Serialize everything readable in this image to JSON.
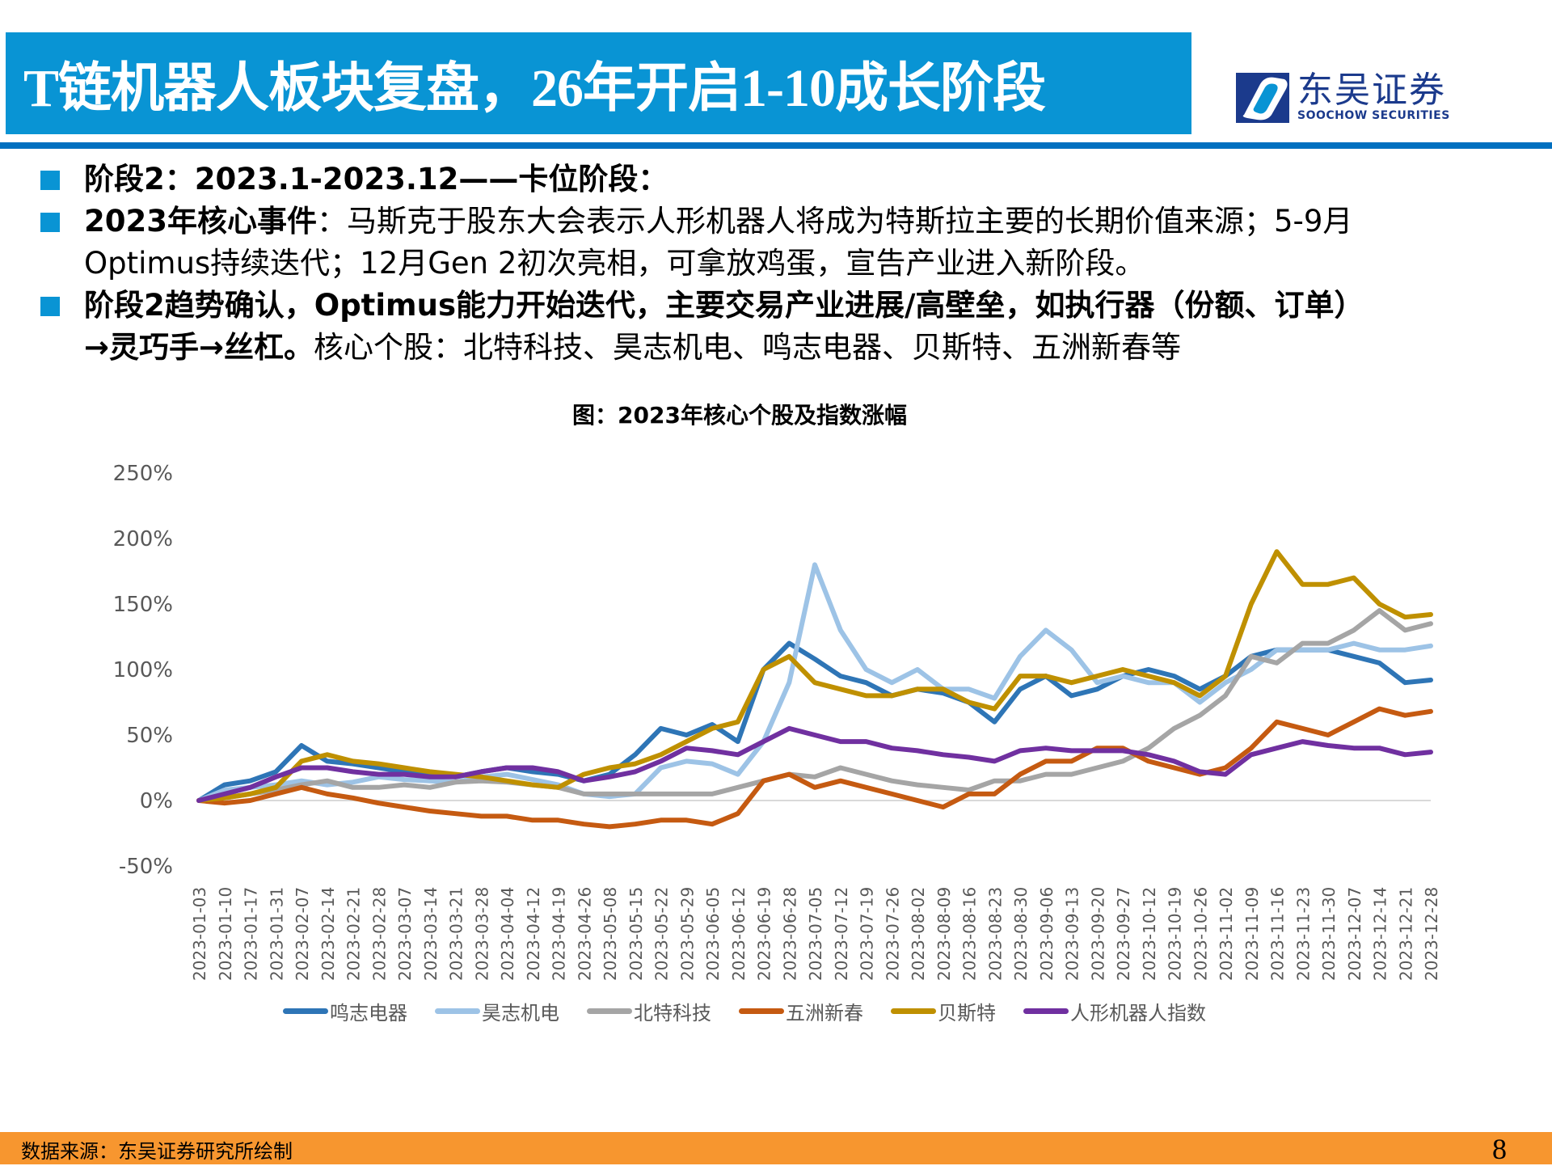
{
  "header": {
    "title": "T链机器人板块复盘，26年开启1-10成长阶段",
    "logo_cn": "东吴证券",
    "logo_en": "SOOCHOW SECURITIES"
  },
  "bullets": [
    {
      "bold": "阶段2：2023.1-2023.12——卡位阶段：",
      "normal": "",
      "line2_bold": "",
      "line2_normal": ""
    },
    {
      "bold": "2023年核心事件",
      "normal": "：马斯克于股东大会表示人形机器人将成为特斯拉主要的长期价值来源；5-9月",
      "line2_bold": "",
      "line2_normal": "Optimus持续迭代；12月Gen 2初次亮相，可拿放鸡蛋，宣告产业进入新阶段。"
    },
    {
      "bold": "阶段2趋势确认，Optimus能力开始迭代，主要交易产业进展/高壁垒，如执行器（份额、订单）",
      "normal": "",
      "line2_bold": "→灵巧手→丝杠。",
      "line2_normal": "核心个股：北特科技、昊志机电、鸣志电器、贝斯特、五洲新春等"
    }
  ],
  "footer": {
    "source": "数据来源：东吴证券研究所绘制",
    "page": "8"
  },
  "colors": {
    "title_bg": "#0994D4",
    "rule": "#0070C0",
    "footer_bg": "#F7962F"
  },
  "chart_data": {
    "type": "line",
    "title": "图：2023年核心个股及指数涨幅",
    "xlabel": "",
    "ylabel": "",
    "ylim": [
      -0.5,
      2.5
    ],
    "yticks": [
      "-50%",
      "0%",
      "50%",
      "100%",
      "150%",
      "200%",
      "250%"
    ],
    "ytick_values": [
      -50,
      0,
      50,
      100,
      150,
      200,
      250
    ],
    "grid": false,
    "legend_position": "bottom",
    "categories": [
      "2023-01-03",
      "2023-01-10",
      "2023-01-17",
      "2023-01-31",
      "2023-02-07",
      "2023-02-14",
      "2023-02-21",
      "2023-02-28",
      "2023-03-07",
      "2023-03-14",
      "2023-03-21",
      "2023-03-28",
      "2023-04-04",
      "2023-04-12",
      "2023-04-19",
      "2023-04-26",
      "2023-05-08",
      "2023-05-15",
      "2023-05-22",
      "2023-05-29",
      "2023-06-05",
      "2023-06-12",
      "2023-06-19",
      "2023-06-28",
      "2023-07-05",
      "2023-07-12",
      "2023-07-19",
      "2023-07-26",
      "2023-08-02",
      "2023-08-09",
      "2023-08-16",
      "2023-08-23",
      "2023-08-30",
      "2023-09-06",
      "2023-09-13",
      "2023-09-20",
      "2023-09-27",
      "2023-10-12",
      "2023-10-19",
      "2023-10-26",
      "2023-11-02",
      "2023-11-09",
      "2023-11-16",
      "2023-11-23",
      "2023-11-30",
      "2023-12-07",
      "2023-12-14",
      "2023-12-21",
      "2023-12-28"
    ],
    "series": [
      {
        "name": "鸣志电器",
        "color": "#2E75B6",
        "values": [
          0,
          12,
          15,
          22,
          42,
          30,
          28,
          25,
          22,
          20,
          18,
          22,
          25,
          22,
          20,
          15,
          20,
          35,
          55,
          50,
          58,
          45,
          100,
          120,
          108,
          95,
          90,
          80,
          85,
          82,
          75,
          60,
          85,
          95,
          80,
          85,
          95,
          100,
          95,
          85,
          95,
          110,
          115,
          115,
          115,
          110,
          105,
          90,
          92
        ]
      },
      {
        "name": "昊志机电",
        "color": "#9DC3E6",
        "values": [
          0,
          8,
          10,
          12,
          15,
          12,
          14,
          18,
          16,
          15,
          14,
          18,
          20,
          16,
          12,
          5,
          3,
          5,
          25,
          30,
          28,
          20,
          45,
          90,
          180,
          130,
          100,
          90,
          100,
          85,
          85,
          78,
          110,
          130,
          115,
          90,
          95,
          90,
          90,
          75,
          90,
          100,
          115,
          115,
          115,
          120,
          115,
          115,
          118
        ]
      },
      {
        "name": "北特科技",
        "color": "#A5A5A5",
        "values": [
          0,
          2,
          5,
          8,
          12,
          15,
          10,
          10,
          12,
          10,
          14,
          15,
          14,
          12,
          10,
          5,
          5,
          5,
          5,
          5,
          5,
          10,
          15,
          20,
          18,
          25,
          20,
          15,
          12,
          10,
          8,
          15,
          15,
          20,
          20,
          25,
          30,
          40,
          55,
          65,
          80,
          110,
          105,
          120,
          120,
          130,
          145,
          130,
          135
        ]
      },
      {
        "name": "五洲新春",
        "color": "#C55A11",
        "values": [
          0,
          -2,
          0,
          5,
          10,
          5,
          2,
          -2,
          -5,
          -8,
          -10,
          -12,
          -12,
          -15,
          -15,
          -18,
          -20,
          -18,
          -15,
          -15,
          -18,
          -10,
          15,
          20,
          10,
          15,
          10,
          5,
          0,
          -5,
          5,
          5,
          20,
          30,
          30,
          40,
          40,
          30,
          25,
          20,
          25,
          40,
          60,
          55,
          50,
          60,
          70,
          65,
          68
        ]
      },
      {
        "name": "贝斯特",
        "color": "#BF9000",
        "values": [
          0,
          2,
          5,
          10,
          30,
          35,
          30,
          28,
          25,
          22,
          20,
          18,
          15,
          12,
          10,
          20,
          25,
          28,
          35,
          45,
          55,
          60,
          100,
          110,
          90,
          85,
          80,
          80,
          85,
          85,
          75,
          70,
          95,
          95,
          90,
          95,
          100,
          95,
          90,
          80,
          95,
          150,
          190,
          165,
          165,
          170,
          150,
          140,
          142
        ]
      },
      {
        "name": "人形机器人指数",
        "color": "#7030A0",
        "values": [
          0,
          5,
          10,
          18,
          25,
          25,
          22,
          20,
          20,
          18,
          18,
          22,
          25,
          25,
          22,
          15,
          18,
          22,
          30,
          40,
          38,
          35,
          45,
          55,
          50,
          45,
          45,
          40,
          38,
          35,
          33,
          30,
          38,
          40,
          38,
          38,
          38,
          35,
          30,
          22,
          20,
          35,
          40,
          45,
          42,
          40,
          40,
          35,
          37
        ]
      }
    ]
  }
}
